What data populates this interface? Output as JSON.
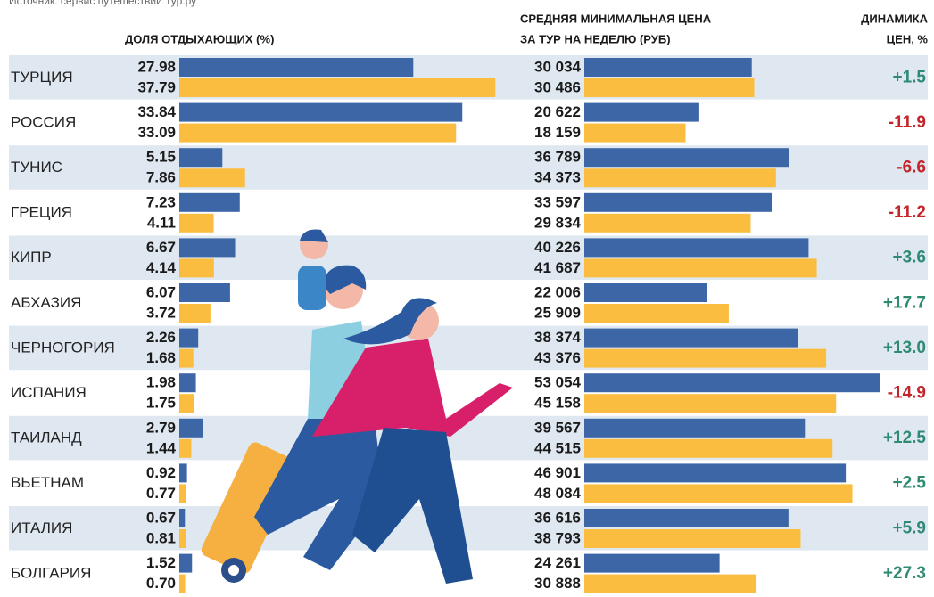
{
  "source": "Источник: сервис путешествий Тур.ру",
  "chart_data": [
    {
      "type": "hbar",
      "title": "ДОЛЯ ОТДЫХАЮЩИХ (%)",
      "categories": [
        "ТУРЦИЯ",
        "РОССИЯ",
        "ТУНИС",
        "ГРЕЦИЯ",
        "КИПР",
        "АБХАЗИЯ",
        "ЧЕРНОГОРИЯ",
        "ИСПАНИЯ",
        "ТАИЛАНД",
        "ВЬЕТНАМ",
        "ИТАЛИЯ",
        "БОЛГАРИЯ"
      ],
      "series": [
        {
          "color": "#3d66a6",
          "values": [
            27.98,
            33.84,
            5.15,
            7.23,
            6.67,
            6.07,
            2.26,
            1.98,
            2.79,
            0.92,
            0.67,
            1.52
          ],
          "value_labels": [
            "27.98",
            "33.84",
            "5.15",
            "7.23",
            "6.67",
            "6.07",
            "2.26",
            "1.98",
            "2.79",
            "0.92",
            "0.67",
            "1.52"
          ]
        },
        {
          "color": "#fbbd3f",
          "values": [
            37.79,
            33.09,
            7.86,
            4.11,
            4.14,
            3.72,
            1.68,
            1.75,
            1.44,
            0.77,
            0.81,
            0.7
          ],
          "value_labels": [
            "37.79",
            "33.09",
            "7.86",
            "4.11",
            "4.14",
            "3.72",
            "1.68",
            "1.75",
            "1.44",
            "0.77",
            "0.81",
            "0.70"
          ]
        }
      ],
      "xlim": [
        0,
        40
      ]
    },
    {
      "type": "hbar",
      "title": [
        "СРЕДНЯЯ МИНИМАЛЬНАЯ ЦЕНА",
        "ЗА ТУР  НА НЕДЕЛЮ (РУБ)"
      ],
      "series": [
        {
          "color": "#3d66a6",
          "values": [
            30034,
            20622,
            36789,
            33597,
            40226,
            22006,
            38374,
            53054,
            39567,
            46901,
            36616,
            24261
          ],
          "value_labels": [
            "30 034",
            "20 622",
            "36 789",
            "33 597",
            "40 226",
            "22 006",
            "38 374",
            "53 054",
            "39 567",
            "46 901",
            "36 616",
            "24 261"
          ]
        },
        {
          "color": "#fbbd3f",
          "values": [
            30486,
            18159,
            34373,
            29834,
            41687,
            25909,
            43376,
            45158,
            44515,
            48084,
            38793,
            30888
          ],
          "value_labels": [
            "30 486",
            "18 159",
            "34 373",
            "29 834",
            "41 687",
            "25 909",
            "43 376",
            "45 158",
            "44 515",
            "48 084",
            "38 793",
            "30 888"
          ]
        }
      ],
      "xlim": [
        0,
        60000
      ]
    },
    {
      "type": "text",
      "title": [
        "ДИНАМИКА",
        "ЦЕН, %"
      ],
      "values": [
        1.5,
        -11.9,
        -6.6,
        -11.2,
        3.6,
        17.7,
        13.0,
        -14.9,
        12.5,
        2.5,
        5.9,
        27.3
      ],
      "value_labels": [
        "+1.5",
        "-11.9",
        "-6.6",
        "-11.2",
        "+3.6",
        "+17.7",
        "+13.0",
        "-14.9",
        "+12.5",
        "+2.5",
        "+5.9",
        "+27.3"
      ],
      "positive_color": "#2f8a72",
      "negative_color": "#c3252b"
    }
  ]
}
